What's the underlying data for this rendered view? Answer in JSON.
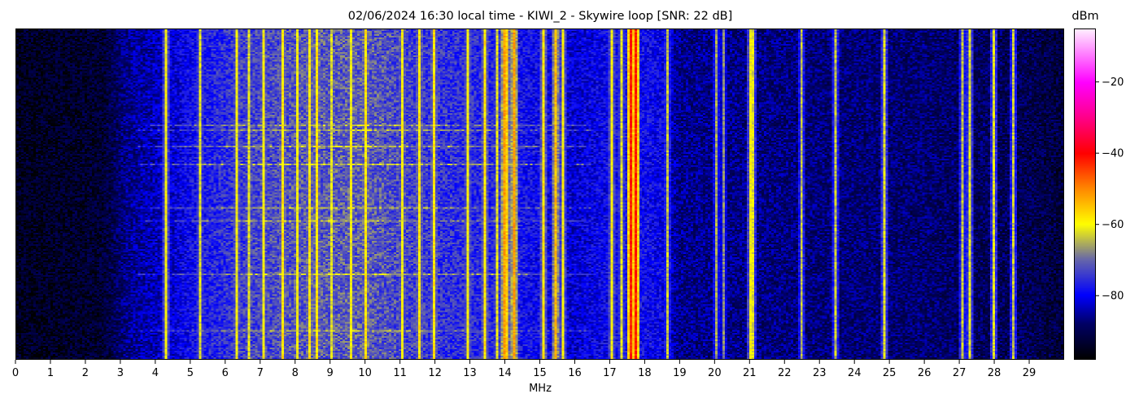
{
  "chart_data": {
    "type": "heatmap",
    "title": "02/06/2024 16:30 local time - KIWI_2 - Skywire loop [SNR: 22 dB]",
    "xlabel": "MHz",
    "ylabel": "",
    "xlim": [
      0,
      30
    ],
    "x_ticks": [
      0,
      1,
      2,
      3,
      4,
      5,
      6,
      7,
      8,
      9,
      10,
      11,
      12,
      13,
      14,
      15,
      16,
      17,
      18,
      19,
      20,
      21,
      22,
      23,
      24,
      25,
      26,
      27,
      28,
      29
    ],
    "colorbar": {
      "label": "dBm",
      "range": [
        -98,
        -5
      ],
      "ticks": [
        -20,
        -40,
        -60,
        -80
      ],
      "stops": [
        {
          "value": -98,
          "color": "#000000"
        },
        {
          "value": -88,
          "color": "#000066"
        },
        {
          "value": -80,
          "color": "#0000ff"
        },
        {
          "value": -70,
          "color": "#6666aa"
        },
        {
          "value": -60,
          "color": "#ffff00"
        },
        {
          "value": -50,
          "color": "#ff8800"
        },
        {
          "value": -40,
          "color": "#ff0000"
        },
        {
          "value": -30,
          "color": "#ff0088"
        },
        {
          "value": -20,
          "color": "#ff00ff"
        },
        {
          "value": -5,
          "color": "#ffeeff"
        }
      ]
    },
    "noise_floor_profile": [
      {
        "mhz": 0,
        "dbm": -95
      },
      {
        "mhz": 2.5,
        "dbm": -93
      },
      {
        "mhz": 3.2,
        "dbm": -86
      },
      {
        "mhz": 4.5,
        "dbm": -82
      },
      {
        "mhz": 5.2,
        "dbm": -78
      },
      {
        "mhz": 6.5,
        "dbm": -74
      },
      {
        "mhz": 8,
        "dbm": -72
      },
      {
        "mhz": 10,
        "dbm": -71
      },
      {
        "mhz": 12,
        "dbm": -75
      },
      {
        "mhz": 14,
        "dbm": -77
      },
      {
        "mhz": 16,
        "dbm": -82
      },
      {
        "mhz": 17.5,
        "dbm": -78
      },
      {
        "mhz": 18.5,
        "dbm": -80
      },
      {
        "mhz": 19,
        "dbm": -86
      },
      {
        "mhz": 22,
        "dbm": -87
      },
      {
        "mhz": 26,
        "dbm": -88
      },
      {
        "mhz": 29,
        "dbm": -90
      },
      {
        "mhz": 30,
        "dbm": -92
      }
    ],
    "carriers": [
      {
        "mhz": 4.25,
        "dbm": -60
      },
      {
        "mhz": 5.2,
        "dbm": -62
      },
      {
        "mhz": 6.3,
        "dbm": -60
      },
      {
        "mhz": 6.65,
        "dbm": -62
      },
      {
        "mhz": 7.05,
        "dbm": -60
      },
      {
        "mhz": 7.6,
        "dbm": -58
      },
      {
        "mhz": 8.05,
        "dbm": -60
      },
      {
        "mhz": 8.4,
        "dbm": -58
      },
      {
        "mhz": 8.6,
        "dbm": -58
      },
      {
        "mhz": 9.0,
        "dbm": -62
      },
      {
        "mhz": 9.55,
        "dbm": -60
      },
      {
        "mhz": 10.0,
        "dbm": -58
      },
      {
        "mhz": 11.0,
        "dbm": -60
      },
      {
        "mhz": 11.5,
        "dbm": -58
      },
      {
        "mhz": 11.95,
        "dbm": -58
      },
      {
        "mhz": 12.9,
        "dbm": -60
      },
      {
        "mhz": 13.4,
        "dbm": -58
      },
      {
        "mhz": 13.75,
        "dbm": -62
      },
      {
        "mhz": 13.95,
        "dbm": -52
      },
      {
        "mhz": 14.05,
        "dbm": -56
      },
      {
        "mhz": 14.25,
        "dbm": -52
      },
      {
        "mhz": 15.1,
        "dbm": -58
      },
      {
        "mhz": 15.4,
        "dbm": -54
      },
      {
        "mhz": 15.6,
        "dbm": -60
      },
      {
        "mhz": 17.05,
        "dbm": -60
      },
      {
        "mhz": 17.3,
        "dbm": -62
      },
      {
        "mhz": 17.6,
        "dbm": -42
      },
      {
        "mhz": 17.75,
        "dbm": -42
      },
      {
        "mhz": 18.6,
        "dbm": -64
      },
      {
        "mhz": 20.05,
        "dbm": -66
      },
      {
        "mhz": 20.2,
        "dbm": -68
      },
      {
        "mhz": 21.0,
        "dbm": -60
      },
      {
        "mhz": 21.1,
        "dbm": -62
      },
      {
        "mhz": 22.45,
        "dbm": -64
      },
      {
        "mhz": 23.45,
        "dbm": -64
      },
      {
        "mhz": 24.85,
        "dbm": -62
      },
      {
        "mhz": 27.05,
        "dbm": -64
      },
      {
        "mhz": 27.3,
        "dbm": -62
      },
      {
        "mhz": 28.0,
        "dbm": -62
      },
      {
        "mhz": 28.5,
        "dbm": -64
      }
    ]
  }
}
